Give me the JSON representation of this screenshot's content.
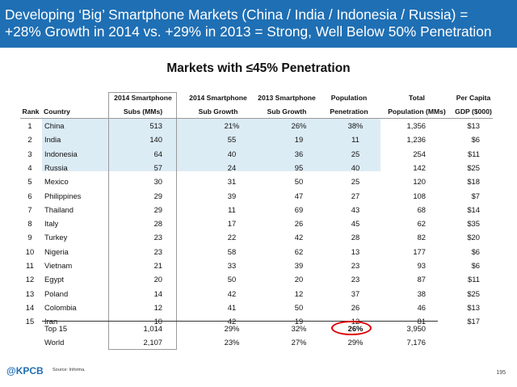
{
  "header": {
    "line1": "Developing ‘Big’ Smartphone Markets (China / India / Indonesia / Russia) =",
    "line2": "+28% Growth in 2014 vs. +29% in 2013 = Strong, Well Below 50% Penetration"
  },
  "subtitle": "Markets with ≤45% Penetration",
  "table": {
    "headers_top": [
      "2014 Smartphone",
      "2014 Smartphone",
      "2013 Smartphone",
      "Population",
      "Total",
      "Per Capita"
    ],
    "headers_bottom": [
      "Rank",
      "Country",
      "Subs (MMs)",
      "Sub Growth",
      "Sub Growth",
      "Penetration",
      "Population (MMs)",
      "GDP ($000)"
    ],
    "rows": [
      {
        "rank": "1",
        "country": "China",
        "subs": "513",
        "g14": "21%",
        "g13": "26%",
        "pen": "38%",
        "pop": "1,356",
        "gdp": "$13"
      },
      {
        "rank": "2",
        "country": "India",
        "subs": "140",
        "g14": "55",
        "g13": "19",
        "pen": "11",
        "pop": "1,236",
        "gdp": "$6"
      },
      {
        "rank": "3",
        "country": "Indonesia",
        "subs": "64",
        "g14": "40",
        "g13": "36",
        "pen": "25",
        "pop": "254",
        "gdp": "$11"
      },
      {
        "rank": "4",
        "country": "Russia",
        "subs": "57",
        "g14": "24",
        "g13": "95",
        "pen": "40",
        "pop": "142",
        "gdp": "$25"
      },
      {
        "rank": "5",
        "country": "Mexico",
        "subs": "30",
        "g14": "31",
        "g13": "50",
        "pen": "25",
        "pop": "120",
        "gdp": "$18"
      },
      {
        "rank": "6",
        "country": "Philippines",
        "subs": "29",
        "g14": "39",
        "g13": "47",
        "pen": "27",
        "pop": "108",
        "gdp": "$7"
      },
      {
        "rank": "7",
        "country": "Thailand",
        "subs": "29",
        "g14": "11",
        "g13": "69",
        "pen": "43",
        "pop": "68",
        "gdp": "$14"
      },
      {
        "rank": "8",
        "country": "Italy",
        "subs": "28",
        "g14": "17",
        "g13": "26",
        "pen": "45",
        "pop": "62",
        "gdp": "$35"
      },
      {
        "rank": "9",
        "country": "Turkey",
        "subs": "23",
        "g14": "22",
        "g13": "42",
        "pen": "28",
        "pop": "82",
        "gdp": "$20"
      },
      {
        "rank": "10",
        "country": "Nigeria",
        "subs": "23",
        "g14": "58",
        "g13": "62",
        "pen": "13",
        "pop": "177",
        "gdp": "$6"
      },
      {
        "rank": "11",
        "country": "Vietnam",
        "subs": "21",
        "g14": "33",
        "g13": "39",
        "pen": "23",
        "pop": "93",
        "gdp": "$6"
      },
      {
        "rank": "12",
        "country": "Egypt",
        "subs": "20",
        "g14": "50",
        "g13": "20",
        "pen": "23",
        "pop": "87",
        "gdp": "$11"
      },
      {
        "rank": "13",
        "country": "Poland",
        "subs": "14",
        "g14": "42",
        "g13": "12",
        "pen": "37",
        "pop": "38",
        "gdp": "$25"
      },
      {
        "rank": "14",
        "country": "Colombia",
        "subs": "12",
        "g14": "41",
        "g13": "50",
        "pen": "26",
        "pop": "46",
        "gdp": "$13"
      },
      {
        "rank": "15",
        "country": "Iran",
        "subs": "10",
        "g14": "42",
        "g13": "19",
        "pen": "12",
        "pop": "81",
        "gdp": "$17"
      }
    ],
    "summary": [
      {
        "label": "Top 15",
        "subs": "1,014",
        "g14": "29%",
        "g13": "32%",
        "pen": "26%",
        "pop": "3,950"
      },
      {
        "label": "World",
        "subs": "2,107",
        "g14": "23%",
        "g13": "27%",
        "pen": "29%",
        "pop": "7,176"
      }
    ]
  },
  "footer": {
    "logo": "@KPCB",
    "source": "Source: Informa.",
    "page": "195"
  },
  "colors": {
    "header_bg": "#1f6fb4",
    "highlight_bg": "#dcecf5",
    "circle": "#e00000"
  }
}
